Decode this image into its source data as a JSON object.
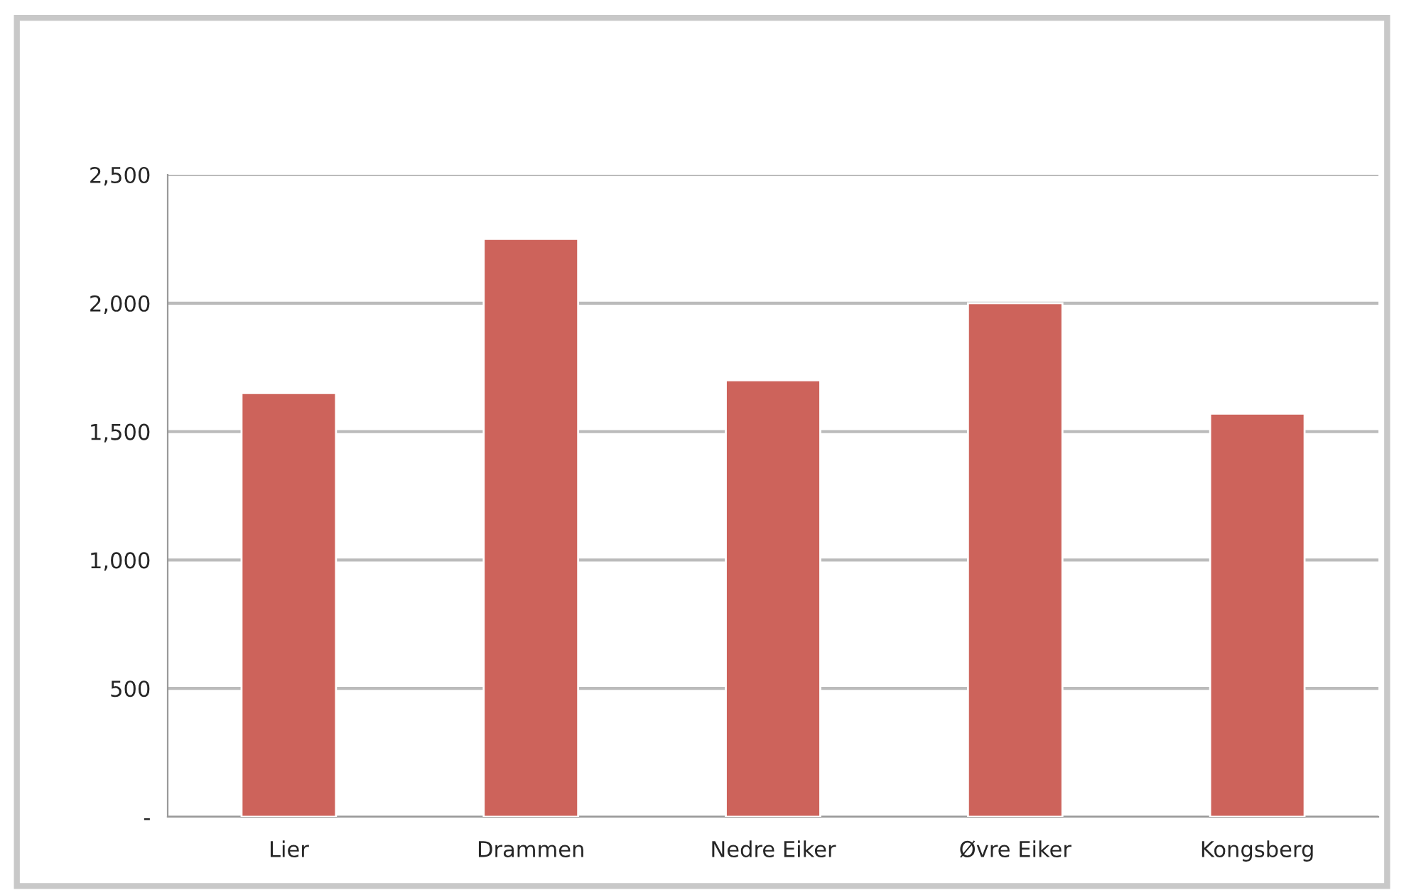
{
  "chart_data": {
    "type": "bar",
    "categories": [
      "Lier",
      "Drammen",
      "Nedre Eiker",
      "Øvre Eiker",
      "Kongsberg"
    ],
    "values": [
      1650,
      2250,
      1700,
      2000,
      1570
    ],
    "color": "#cd635b",
    "ylim": [
      0,
      2500
    ],
    "yticks": [
      {
        "value": 0,
        "label": "-"
      },
      {
        "value": 500,
        "label": "500"
      },
      {
        "value": 1000,
        "label": "1,000"
      },
      {
        "value": 1500,
        "label": "1,500"
      },
      {
        "value": 2000,
        "label": "2,000"
      },
      {
        "value": 2500,
        "label": "2,500"
      }
    ],
    "grid": "y"
  }
}
